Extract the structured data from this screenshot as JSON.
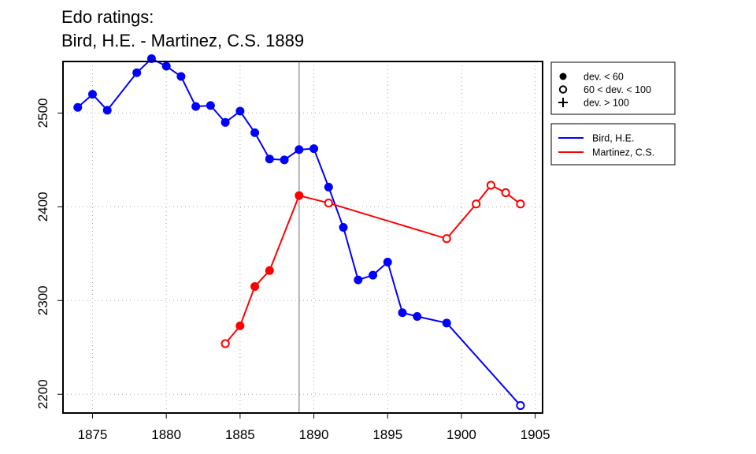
{
  "title_line1": "Edo ratings:",
  "title_line2": "Bird, H.E. - Martinez, C.S. 1889",
  "chart_data": {
    "type": "line",
    "xlim": [
      1873,
      1905.5
    ],
    "ylim": [
      2180,
      2555
    ],
    "xticks": [
      1875,
      1880,
      1885,
      1890,
      1895,
      1900,
      1905
    ],
    "yticks": [
      2200,
      2300,
      2400,
      2500
    ],
    "grid": true,
    "vline_x": 1889,
    "symbol_legend": [
      {
        "symbol": "filled-circle",
        "label": "dev. < 60"
      },
      {
        "symbol": "open-circle",
        "label": "60 < dev. < 100"
      },
      {
        "symbol": "plus",
        "label": "dev. > 100"
      }
    ],
    "series": [
      {
        "name": "Bird, H.E.",
        "color": "#0000ff",
        "points": [
          {
            "x": 1874,
            "y": 2506,
            "marker": "filled"
          },
          {
            "x": 1875,
            "y": 2520,
            "marker": "filled"
          },
          {
            "x": 1876,
            "y": 2503,
            "marker": "filled"
          },
          {
            "x": 1878,
            "y": 2543,
            "marker": "filled"
          },
          {
            "x": 1879,
            "y": 2558,
            "marker": "filled"
          },
          {
            "x": 1880,
            "y": 2550,
            "marker": "filled"
          },
          {
            "x": 1881,
            "y": 2539,
            "marker": "filled"
          },
          {
            "x": 1882,
            "y": 2507,
            "marker": "filled"
          },
          {
            "x": 1883,
            "y": 2508,
            "marker": "filled"
          },
          {
            "x": 1884,
            "y": 2490,
            "marker": "filled"
          },
          {
            "x": 1885,
            "y": 2502,
            "marker": "filled"
          },
          {
            "x": 1886,
            "y": 2479,
            "marker": "filled"
          },
          {
            "x": 1887,
            "y": 2451,
            "marker": "filled"
          },
          {
            "x": 1888,
            "y": 2450,
            "marker": "filled"
          },
          {
            "x": 1889,
            "y": 2461,
            "marker": "filled"
          },
          {
            "x": 1890,
            "y": 2462,
            "marker": "filled"
          },
          {
            "x": 1891,
            "y": 2421,
            "marker": "filled"
          },
          {
            "x": 1892,
            "y": 2378,
            "marker": "filled"
          },
          {
            "x": 1893,
            "y": 2322,
            "marker": "filled"
          },
          {
            "x": 1894,
            "y": 2327,
            "marker": "filled"
          },
          {
            "x": 1895,
            "y": 2341,
            "marker": "filled"
          },
          {
            "x": 1896,
            "y": 2287,
            "marker": "filled"
          },
          {
            "x": 1897,
            "y": 2283,
            "marker": "filled"
          },
          {
            "x": 1899,
            "y": 2276,
            "marker": "filled"
          },
          {
            "x": 1904,
            "y": 2188,
            "marker": "open"
          }
        ]
      },
      {
        "name": "Martinez, C.S.",
        "color": "#ff0000",
        "points": [
          {
            "x": 1884,
            "y": 2254,
            "marker": "open"
          },
          {
            "x": 1885,
            "y": 2273,
            "marker": "filled"
          },
          {
            "x": 1886,
            "y": 2315,
            "marker": "filled"
          },
          {
            "x": 1887,
            "y": 2332,
            "marker": "filled"
          },
          {
            "x": 1889,
            "y": 2412,
            "marker": "filled"
          },
          {
            "x": 1891,
            "y": 2404,
            "marker": "open"
          },
          {
            "x": 1899,
            "y": 2366,
            "marker": "open"
          },
          {
            "x": 1901,
            "y": 2403,
            "marker": "open"
          },
          {
            "x": 1902,
            "y": 2423,
            "marker": "open"
          },
          {
            "x": 1903,
            "y": 2415,
            "marker": "open"
          },
          {
            "x": 1904,
            "y": 2403,
            "marker": "open"
          }
        ]
      }
    ]
  }
}
